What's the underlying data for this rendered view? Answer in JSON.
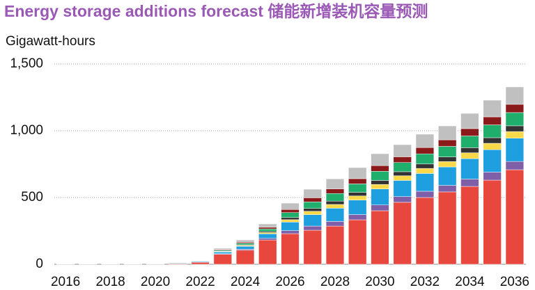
{
  "chart_data": {
    "type": "stacked_bar",
    "title": "Energy storage additions forecast 储能新增装机容量预测",
    "y_label": "Gigawatt-hours",
    "categories": [
      "2016",
      null,
      "2018",
      null,
      "2020",
      null,
      "2022",
      null,
      "2024",
      null,
      "2026",
      null,
      "2028",
      null,
      "2030",
      null,
      "2032",
      null,
      "2034",
      null,
      "2036"
    ],
    "series": [
      {
        "color": "#e8473d",
        "values": [
          0,
          0,
          1,
          1,
          2,
          5,
          15,
          75,
          105,
          182,
          229,
          255,
          286,
          333,
          401,
          464,
          500,
          542,
          583,
          630,
          708
        ]
      },
      {
        "color": "#7f5fa8",
        "values": [
          0,
          0,
          0,
          0,
          0,
          0,
          2,
          4,
          8,
          12,
          23,
          31,
          35,
          39,
          43,
          43,
          47,
          49,
          55,
          60,
          62
        ]
      },
      {
        "color": "#1e9fe0",
        "values": [
          0,
          0,
          0,
          0,
          2,
          4,
          6,
          13,
          22,
          34,
          64,
          86,
          99,
          109,
          120,
          121,
          133,
          138,
          153,
          168,
          174
        ]
      },
      {
        "color": "#f9d94a",
        "values": [
          0,
          0,
          0,
          0,
          0,
          0,
          2,
          4,
          6,
          10,
          18,
          25,
          28,
          31,
          34,
          35,
          38,
          40,
          44,
          48,
          50
        ]
      },
      {
        "color": "#333333",
        "values": [
          0,
          0,
          0,
          0,
          0,
          0,
          1,
          3,
          5,
          8,
          16,
          21,
          25,
          27,
          30,
          30,
          33,
          35,
          38,
          42,
          43
        ]
      },
      {
        "color": "#1fae6b",
        "values": [
          1,
          2,
          2,
          2,
          2,
          3,
          2,
          7,
          12,
          19,
          37,
          49,
          57,
          63,
          68,
          69,
          76,
          79,
          88,
          96,
          99
        ]
      },
      {
        "color": "#8b1a1a",
        "values": [
          0,
          0,
          0,
          0,
          0,
          0,
          1,
          5,
          8,
          12,
          23,
          31,
          35,
          39,
          43,
          43,
          47,
          49,
          55,
          60,
          62
        ]
      },
      {
        "color": "#c0c0c0",
        "values": [
          1,
          1,
          2,
          2,
          2,
          3,
          2,
          9,
          16,
          25,
          48,
          64,
          75,
          83,
          89,
          91,
          100,
          104,
          114,
          125,
          130
        ]
      }
    ],
    "ylim": [
      0,
      1500
    ],
    "yticks": [
      0,
      500,
      {
        "value": 1000,
        "label": "1,000"
      },
      {
        "value": 1500,
        "label": "1,500"
      }
    ],
    "grid": true
  }
}
